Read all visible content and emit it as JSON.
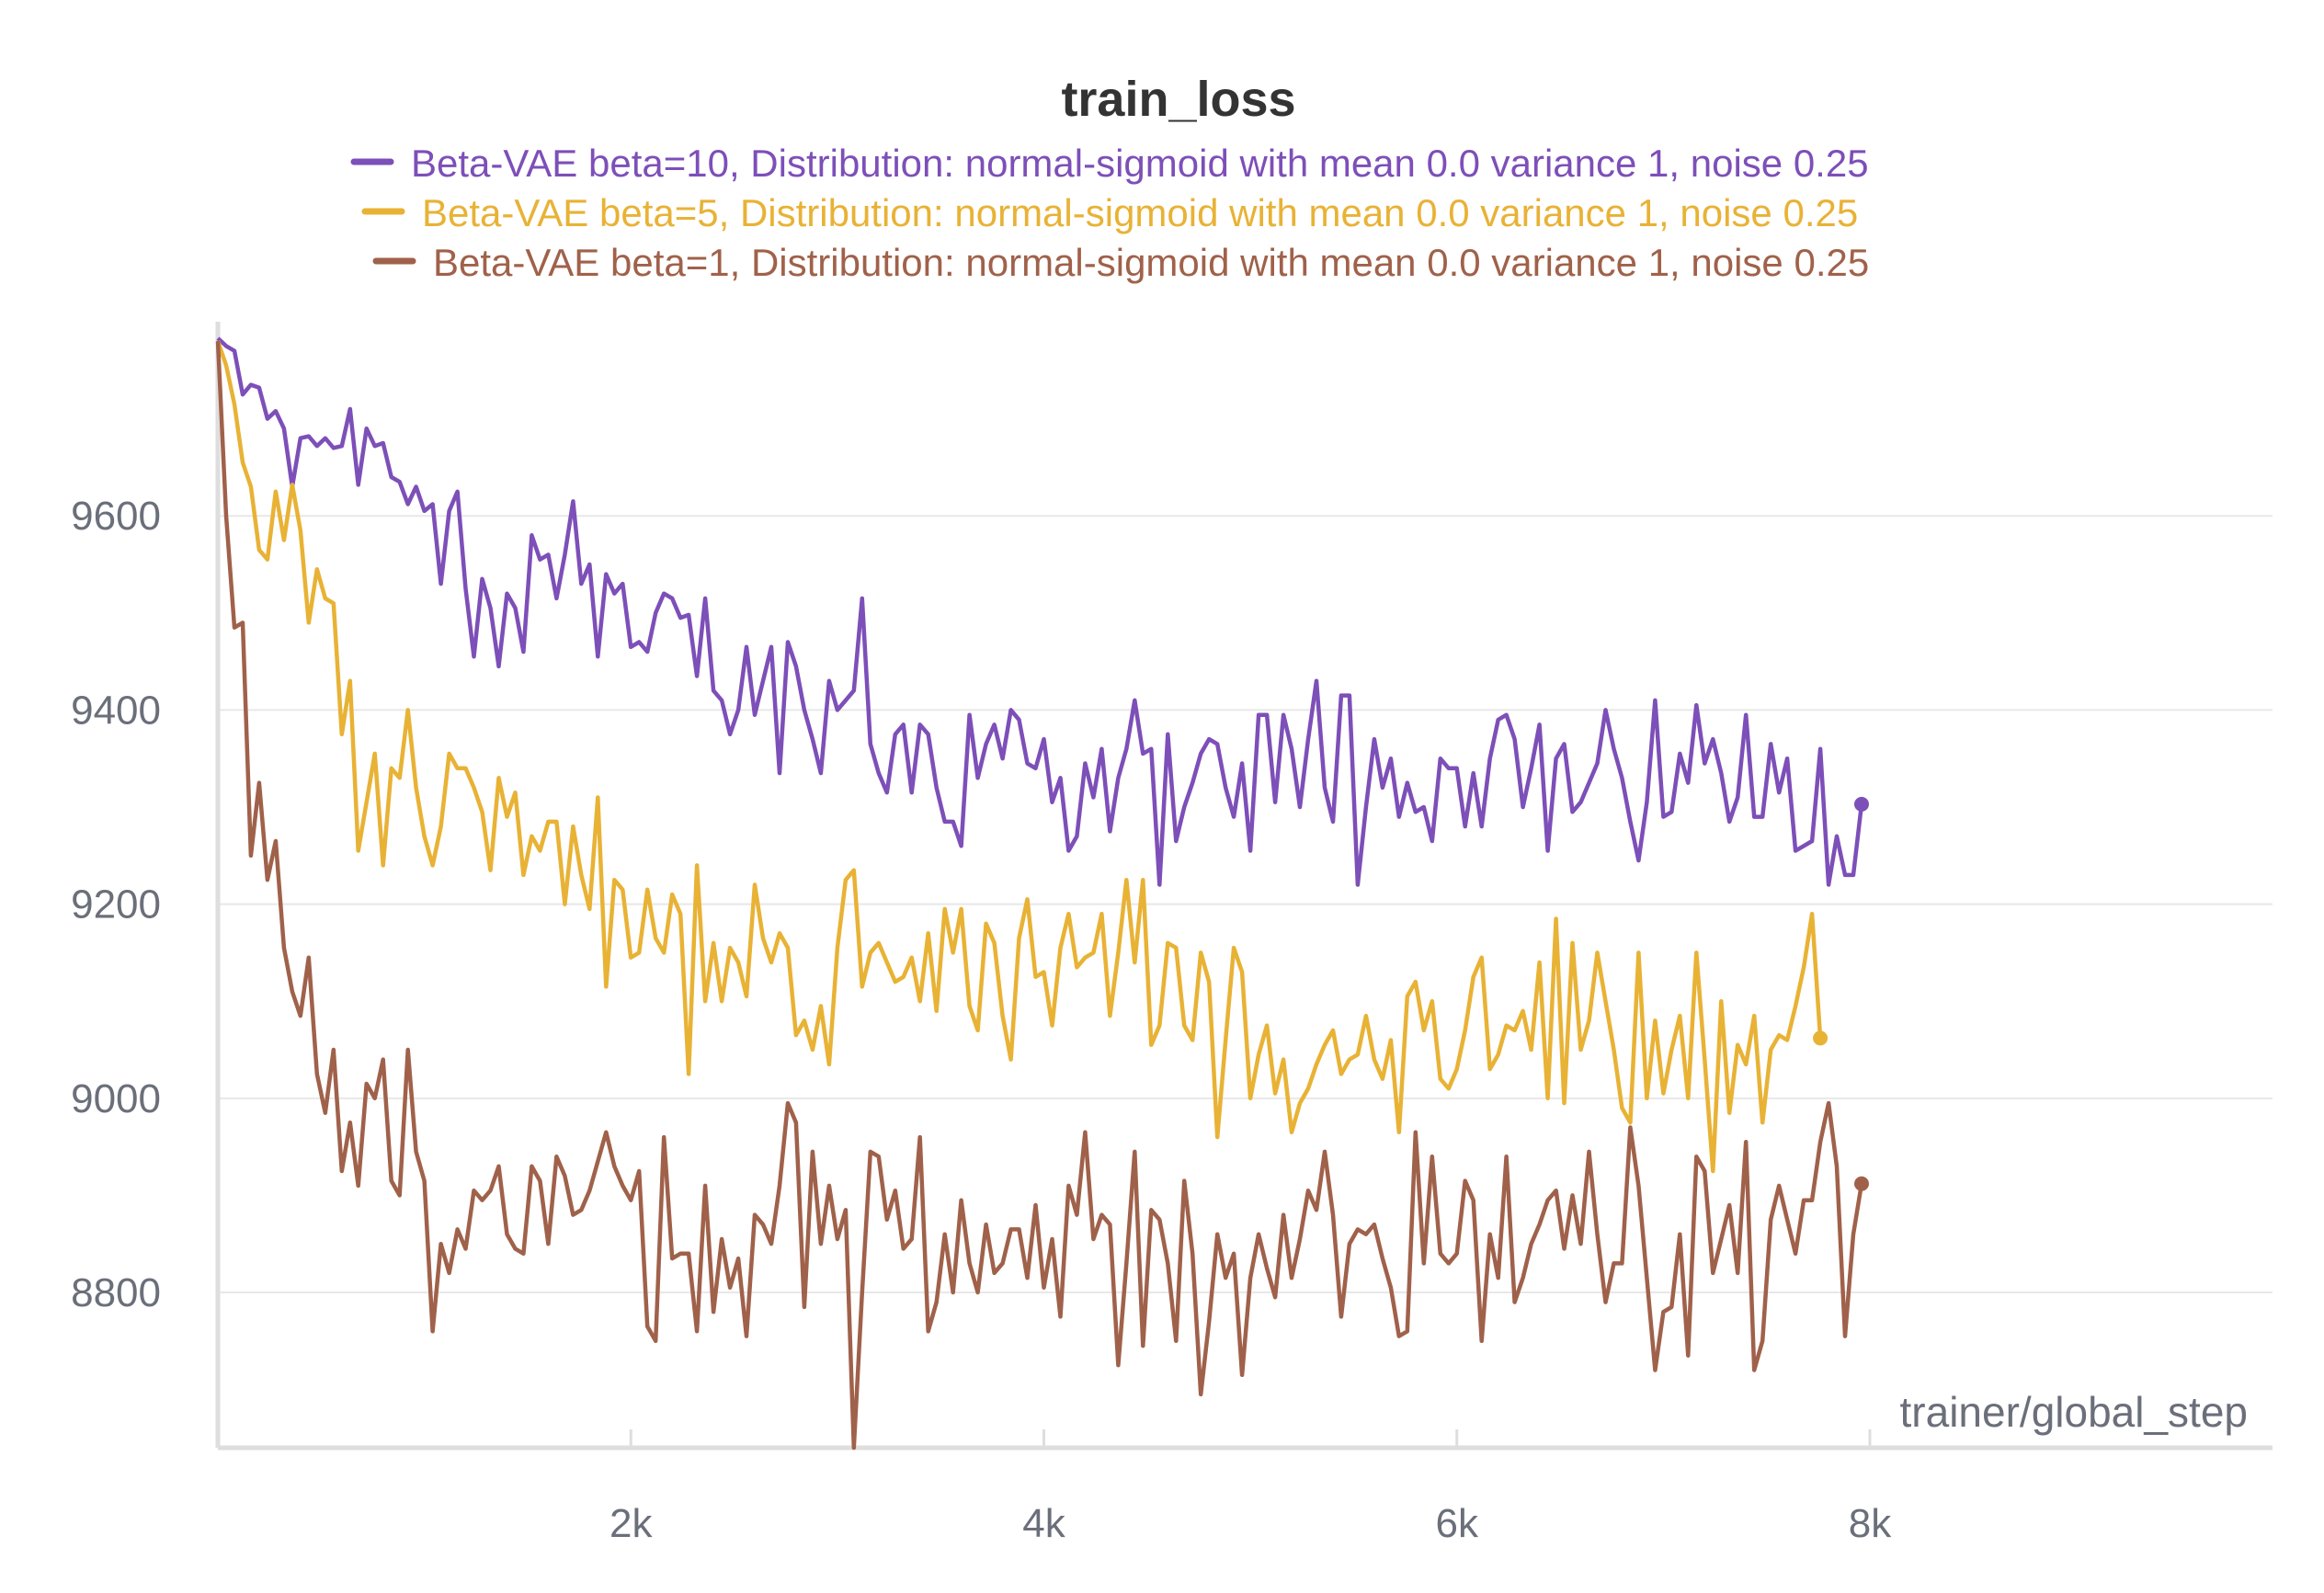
{
  "chart_data": {
    "type": "line",
    "title": "train_loss",
    "xlabel": "trainer/global_step",
    "ylabel": "",
    "xlim": [
      0,
      9950
    ],
    "ylim": [
      8640,
      9800
    ],
    "grid": true,
    "legend_position": "top-center",
    "x_ticks": [
      {
        "value": 2000,
        "label": "2k"
      },
      {
        "value": 4000,
        "label": "4k"
      },
      {
        "value": 6000,
        "label": "6k"
      },
      {
        "value": 8000,
        "label": "8k"
      }
    ],
    "y_ticks": [
      {
        "value": 8800,
        "label": "8800"
      },
      {
        "value": 9000,
        "label": "9000"
      },
      {
        "value": 9200,
        "label": "9200"
      },
      {
        "value": 9400,
        "label": "9400"
      },
      {
        "value": 9600,
        "label": "9600"
      }
    ],
    "x_start": 0,
    "x_step": 40,
    "series": [
      {
        "name": "Beta-VAE beta=10, Distribution: normal-sigmoid with mean 0.0 variance 1, noise 0.25",
        "color": "#7d4fb8",
        "values": [
          9783,
          9775,
          9770,
          9725,
          9735,
          9732,
          9700,
          9708,
          9690,
          9630,
          9680,
          9682,
          9672,
          9680,
          9670,
          9672,
          9710,
          9632,
          9690,
          9672,
          9675,
          9640,
          9635,
          9612,
          9630,
          9605,
          9612,
          9530,
          9605,
          9625,
          9525,
          9455,
          9535,
          9505,
          9445,
          9520,
          9505,
          9460,
          9580,
          9555,
          9560,
          9515,
          9560,
          9615,
          9530,
          9550,
          9455,
          9540,
          9520,
          9530,
          9465,
          9470,
          9460,
          9500,
          9520,
          9515,
          9495,
          9498,
          9435,
          9515,
          9420,
          9410,
          9375,
          9400,
          9465,
          9395,
          9430,
          9465,
          9335,
          9470,
          9445,
          9400,
          9370,
          9335,
          9430,
          9400,
          9410,
          9420,
          9515,
          9365,
          9335,
          9315,
          9375,
          9385,
          9315,
          9385,
          9375,
          9320,
          9285,
          9285,
          9260,
          9395,
          9330,
          9365,
          9385,
          9350,
          9400,
          9390,
          9345,
          9340,
          9370,
          9305,
          9330,
          9255,
          9270,
          9345,
          9310,
          9360,
          9275,
          9330,
          9360,
          9410,
          9355,
          9360,
          9220,
          9375,
          9265,
          9300,
          9325,
          9355,
          9370,
          9365,
          9320,
          9290,
          9345,
          9255,
          9395,
          9395,
          9305,
          9395,
          9360,
          9300,
          9370,
          9430,
          9320,
          9285,
          9415,
          9415,
          9220,
          9300,
          9370,
          9320,
          9350,
          9290,
          9325,
          9295,
          9300,
          9265,
          9350,
          9340,
          9340,
          9280,
          9335,
          9280,
          9350,
          9390,
          9395,
          9370,
          9300,
          9340,
          9385,
          9255,
          9350,
          9365,
          9295,
          9305,
          9325,
          9345,
          9400,
          9360,
          9330,
          9285,
          9245,
          9305,
          9410,
          9290,
          9295,
          9355,
          9325,
          9405,
          9345,
          9370,
          9335,
          9285,
          9310,
          9395,
          9290,
          9290,
          9365,
          9315,
          9350,
          9255,
          9260,
          9265,
          9360,
          9220,
          9270,
          9230,
          9230,
          9303
        ]
      },
      {
        "name": "Beta-VAE beta=5, Distribution: normal-sigmoid with mean 0.0 variance 1, noise 0.25",
        "color": "#e8b235",
        "values": [
          9780,
          9755,
          9715,
          9655,
          9630,
          9565,
          9555,
          9625,
          9575,
          9632,
          9585,
          9490,
          9545,
          9515,
          9510,
          9375,
          9430,
          9255,
          9305,
          9355,
          9240,
          9340,
          9330,
          9400,
          9320,
          9270,
          9240,
          9280,
          9355,
          9340,
          9340,
          9320,
          9295,
          9235,
          9330,
          9290,
          9315,
          9230,
          9270,
          9255,
          9285,
          9285,
          9200,
          9280,
          9230,
          9195,
          9310,
          9115,
          9225,
          9215,
          9145,
          9150,
          9215,
          9165,
          9150,
          9210,
          9190,
          9025,
          9240,
          9100,
          9160,
          9100,
          9155,
          9140,
          9105,
          9220,
          9165,
          9140,
          9170,
          9155,
          9065,
          9080,
          9050,
          9095,
          9035,
          9155,
          9225,
          9235,
          9115,
          9150,
          9160,
          9140,
          9120,
          9125,
          9145,
          9100,
          9170,
          9090,
          9195,
          9150,
          9195,
          9095,
          9070,
          9180,
          9160,
          9085,
          9040,
          9165,
          9205,
          9125,
          9130,
          9075,
          9155,
          9190,
          9135,
          9145,
          9150,
          9190,
          9085,
          9150,
          9225,
          9140,
          9225,
          9055,
          9075,
          9160,
          9155,
          9075,
          9060,
          9150,
          9120,
          8960,
          9060,
          9155,
          9130,
          9000,
          9045,
          9075,
          9005,
          9040,
          8965,
          8995,
          9010,
          9035,
          9055,
          9070,
          9025,
          9040,
          9045,
          9085,
          9040,
          9020,
          9060,
          8965,
          9105,
          9120,
          9070,
          9100,
          9020,
          9010,
          9030,
          9070,
          9125,
          9145,
          9030,
          9045,
          9075,
          9070,
          9090,
          9050,
          9140,
          9000,
          9185,
          8995,
          9160,
          9050,
          9080,
          9150,
          9100,
          9050,
          8990,
          8975,
          9150,
          9000,
          9080,
          9005,
          9050,
          9085,
          9000,
          9150,
          9040,
          8925,
          9100,
          8985,
          9055,
          9035,
          9085,
          8975,
          9050,
          9065,
          9060,
          9095,
          9135,
          9190,
          9062
        ]
      },
      {
        "name": "Beta-VAE beta=1, Distribution: normal-sigmoid with mean 0.0 variance 1, noise 0.25",
        "color": "#a0614a",
        "values": [
          9780,
          9600,
          9485,
          9490,
          9250,
          9325,
          9225,
          9265,
          9155,
          9110,
          9085,
          9145,
          9025,
          8985,
          9050,
          8925,
          8975,
          8910,
          9015,
          9000,
          9040,
          8915,
          8900,
          9050,
          8945,
          8915,
          8760,
          8850,
          8820,
          8865,
          8845,
          8905,
          8895,
          8905,
          8930,
          8860,
          8845,
          8840,
          8930,
          8915,
          8850,
          8940,
          8920,
          8880,
          8885,
          8905,
          8935,
          8965,
          8930,
          8910,
          8895,
          8925,
          8765,
          8750,
          8960,
          8835,
          8840,
          8840,
          8760,
          8910,
          8780,
          8855,
          8805,
          8835,
          8755,
          8880,
          8870,
          8850,
          8910,
          8995,
          8975,
          8785,
          8945,
          8850,
          8910,
          8855,
          8885,
          8640,
          8800,
          8945,
          8940,
          8875,
          8905,
          8845,
          8855,
          8960,
          8760,
          8790,
          8860,
          8800,
          8895,
          8830,
          8800,
          8870,
          8820,
          8830,
          8865,
          8865,
          8815,
          8890,
          8805,
          8855,
          8775,
          8910,
          8880,
          8965,
          8855,
          8880,
          8870,
          8725,
          8830,
          8945,
          8745,
          8885,
          8875,
          8830,
          8750,
          8915,
          8840,
          8695,
          8770,
          8860,
          8815,
          8840,
          8715,
          8815,
          8860,
          8825,
          8795,
          8880,
          8815,
          8855,
          8905,
          8885,
          8945,
          8880,
          8775,
          8850,
          8865,
          8860,
          8870,
          8835,
          8805,
          8755,
          8760,
          8965,
          8830,
          8940,
          8840,
          8830,
          8840,
          8915,
          8895,
          8750,
          8860,
          8815,
          8940,
          8790,
          8815,
          8850,
          8870,
          8895,
          8905,
          8845,
          8900,
          8850,
          8945,
          8860,
          8790,
          8830,
          8830,
          8970,
          8910,
          8815,
          8720,
          8780,
          8785,
          8860,
          8735,
          8940,
          8925,
          8820,
          8855,
          8890,
          8820,
          8955,
          8720,
          8750,
          8875,
          8910,
          8875,
          8840,
          8895,
          8895,
          8955,
          8995,
          8930,
          8755,
          8860,
          8912
        ]
      }
    ]
  }
}
